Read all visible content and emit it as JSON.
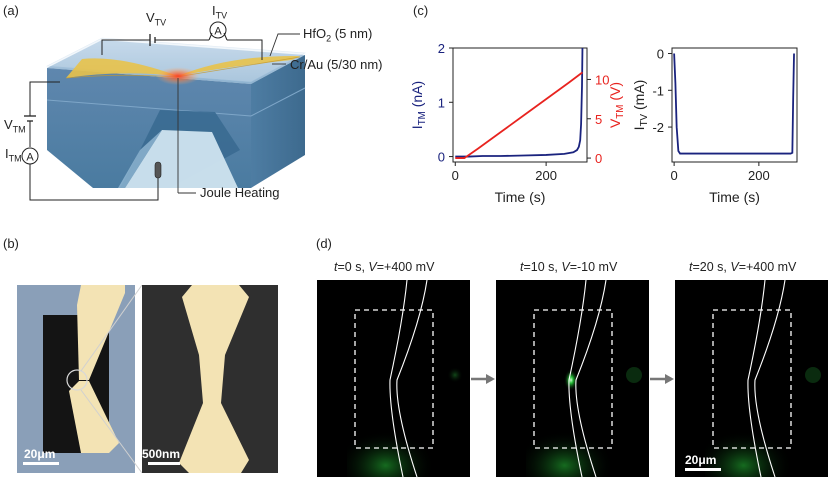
{
  "panels": {
    "a": {
      "label": "(a)",
      "v_tv": {
        "main": "V",
        "sub": "TV"
      },
      "i_tv": {
        "main": "I",
        "sub": "TV"
      },
      "v_tm": {
        "main": "V",
        "sub": "TM"
      },
      "i_tm": {
        "main": "I",
        "sub": "TM"
      },
      "hfo2": {
        "main": "HfO",
        "sub": "2",
        "rest": " (5 nm)"
      },
      "crau": "Cr/Au (5/30 nm)",
      "joule": "Joule Heating",
      "ammeter_symbol": "A"
    },
    "b": {
      "label": "(b)",
      "scale_left": "20μm",
      "scale_right": "500nm"
    },
    "c": {
      "label": "(c)"
    },
    "d": {
      "label": "(d)",
      "frames": [
        {
          "t_var": "t",
          "t_val": "=0 s, ",
          "v_var": "V",
          "v_val": "=+400 mV"
        },
        {
          "t_var": "t",
          "t_val": "=10 s, ",
          "v_var": "V",
          "v_val": "=-10 mV"
        },
        {
          "t_var": "t",
          "t_val": "=20 s, ",
          "v_var": "V",
          "v_val": "=+400 mV"
        }
      ],
      "scale": "20μm"
    }
  },
  "colors": {
    "blue_series": "#1a237e",
    "red_series": "#e8231f",
    "gold": "#f3e3b4",
    "fluor_green": "#27d13b"
  },
  "chart_data": [
    {
      "type": "line",
      "xlabel": "Time (s)",
      "ylabel_left": {
        "main": "I",
        "sub": "TM",
        "rest": " (nA)"
      },
      "ylabel_right": {
        "main": "V",
        "sub": "TM",
        "rest": " (V)"
      },
      "xlim": [
        -5,
        290
      ],
      "ylim_left": [
        -0.1,
        2
      ],
      "ylim_right": [
        -0.5,
        14
      ],
      "x_ticks": [
        0,
        200
      ],
      "y_ticks_left": [
        0,
        1,
        2
      ],
      "y_ticks_right": [
        0,
        5,
        10
      ],
      "series": [
        {
          "name": "ITM",
          "axis": "left",
          "color": "#1a237e",
          "x": [
            0,
            30,
            60,
            100,
            150,
            200,
            240,
            260,
            268,
            272,
            275,
            277,
            279,
            280
          ],
          "y": [
            0,
            0,
            0.01,
            0.01,
            0.02,
            0.03,
            0.05,
            0.08,
            0.12,
            0.18,
            0.3,
            0.6,
            1.3,
            2.0
          ]
        },
        {
          "name": "VTM",
          "axis": "right",
          "color": "#e8231f",
          "x": [
            0,
            10,
            20,
            50,
            100,
            150,
            200,
            250,
            280
          ],
          "y": [
            0,
            0,
            0,
            1.2,
            3.3,
            5.4,
            7.5,
            9.6,
            10.9
          ]
        }
      ]
    },
    {
      "type": "line",
      "xlabel": "Time (s)",
      "ylabel": {
        "main": "I",
        "sub": "TV",
        "rest": " (mA)"
      },
      "xlim": [
        -5,
        290
      ],
      "ylim": [
        -2.95,
        0.15
      ],
      "x_ticks": [
        0,
        200
      ],
      "y_ticks": [
        0,
        -1,
        -2
      ],
      "series": [
        {
          "name": "ITV",
          "color": "#1a237e",
          "x": [
            0,
            3,
            6,
            10,
            14,
            50,
            100,
            150,
            200,
            250,
            275,
            279,
            281,
            283
          ],
          "y": [
            0,
            -0.8,
            -2.0,
            -2.65,
            -2.72,
            -2.72,
            -2.72,
            -2.72,
            -2.72,
            -2.72,
            -2.72,
            -2.7,
            -1.2,
            0
          ]
        }
      ]
    }
  ]
}
